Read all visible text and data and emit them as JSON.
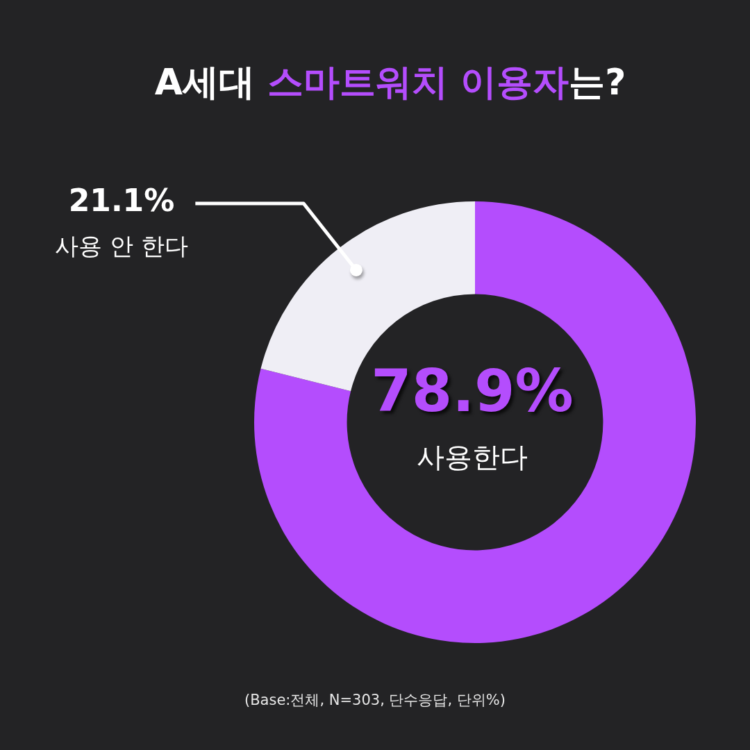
{
  "chart_data": {
    "type": "donut",
    "title": "A세대 스마트워치 이용자는?",
    "categories": [
      "사용한다",
      "사용 안 한다"
    ],
    "values": [
      78.9,
      21.1
    ],
    "colors": [
      "#b44dfd",
      "#efeef5"
    ],
    "value_labels": [
      "78.9%",
      "21.1%"
    ],
    "legend": false,
    "annotations": [
      "(Base:전체, N=303, 단수응답, 단위%)"
    ]
  }
}
